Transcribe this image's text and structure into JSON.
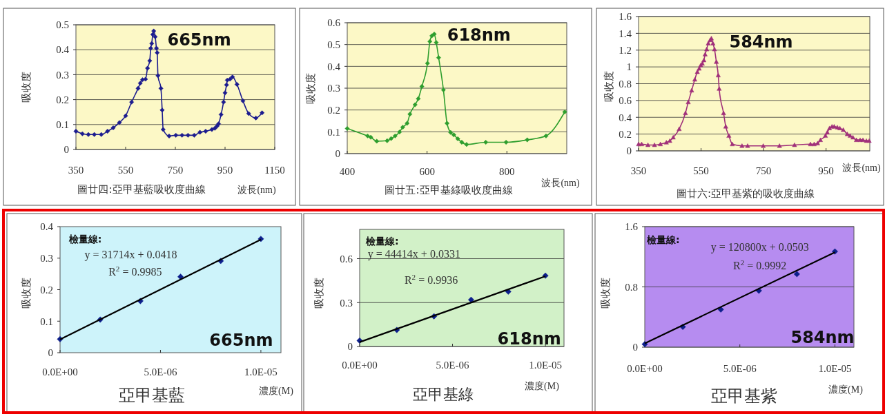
{
  "chart_data": [
    {
      "type": "line",
      "title": "圖廿四:亞甲基藍吸收度曲線",
      "xlabel": "波長(nm)",
      "ylabel": "吸收度",
      "annotations": [
        "665nm"
      ],
      "xlim": [
        350,
        1150
      ],
      "xticks": [
        350,
        550,
        750,
        950,
        1150
      ],
      "ylim": [
        0,
        0.5
      ],
      "yticks": [
        0,
        0.1,
        0.2,
        0.3,
        0.4,
        0.5
      ],
      "grid": "y",
      "marker": "diamond",
      "series": [
        {
          "color": "#1c1c8f",
          "x": [
            350,
            376,
            400,
            424,
            452,
            477,
            500,
            525,
            550,
            574,
            600,
            609,
            618,
            630,
            638,
            647,
            651,
            655,
            659,
            663,
            669,
            674,
            677,
            680,
            692,
            697,
            701,
            725,
            752,
            777,
            801,
            826,
            849,
            872,
            897,
            909,
            918,
            924,
            934,
            944,
            950,
            956,
            959,
            970,
            980,
            998,
            1022,
            1045,
            1074,
            1099
          ],
          "values": [
            0.073,
            0.063,
            0.06,
            0.06,
            0.06,
            0.073,
            0.087,
            0.108,
            0.135,
            0.19,
            0.245,
            0.266,
            0.28,
            0.282,
            0.326,
            0.356,
            0.406,
            0.425,
            0.461,
            0.475,
            0.452,
            0.406,
            0.388,
            0.296,
            0.245,
            0.158,
            0.08,
            0.054,
            0.057,
            0.057,
            0.057,
            0.057,
            0.069,
            0.073,
            0.08,
            0.085,
            0.094,
            0.103,
            0.14,
            0.19,
            0.227,
            0.259,
            0.278,
            0.282,
            0.291,
            0.261,
            0.195,
            0.144,
            0.126,
            0.147
          ]
        }
      ]
    },
    {
      "type": "line",
      "title": "圖廿五:亞甲基綠吸收度曲線",
      "xlabel": "波長(nm)",
      "ylabel": "吸收度",
      "annotations": [
        "618nm"
      ],
      "xlim": [
        400,
        950
      ],
      "xticks": [
        400,
        600,
        800
      ],
      "ylim": [
        0,
        0.6
      ],
      "yticks": [
        0,
        0.1,
        0.2,
        0.3,
        0.4,
        0.5,
        0.6
      ],
      "grid": "y",
      "marker": "diamond",
      "series": [
        {
          "color": "#2e9e2e",
          "x": [
            400,
            451,
            459,
            474,
            500,
            510,
            520,
            531,
            539,
            550,
            557,
            570,
            578,
            587,
            601,
            607,
            612,
            618,
            623,
            629,
            641,
            650,
            659,
            667,
            677,
            687,
            699,
            747,
            798,
            851,
            898,
            945
          ],
          "values": [
            0.115,
            0.081,
            0.075,
            0.057,
            0.059,
            0.069,
            0.081,
            0.099,
            0.121,
            0.139,
            0.181,
            0.224,
            0.252,
            0.308,
            0.414,
            0.514,
            0.54,
            0.548,
            0.509,
            0.44,
            0.292,
            0.139,
            0.097,
            0.086,
            0.068,
            0.052,
            0.042,
            0.052,
            0.052,
            0.063,
            0.081,
            0.191
          ]
        }
      ]
    },
    {
      "type": "line",
      "title": "圖廿六:亞甲基紫的吸收度曲線",
      "xlabel": "波長(nm)",
      "ylabel": "吸收度",
      "annotations": [
        "584nm"
      ],
      "xlim": [
        350,
        1090
      ],
      "xticks": [
        350,
        550,
        750,
        950
      ],
      "ylim": [
        0,
        1.6
      ],
      "yticks": [
        0,
        0.2,
        0.4,
        0.6,
        0.8,
        1,
        1.2,
        1.4,
        1.6
      ],
      "grid": "y",
      "marker": "triangle",
      "series": [
        {
          "color": "#a0307a",
          "x": [
            350,
            360,
            380,
            401,
            420,
            439,
            450,
            461,
            480,
            500,
            509,
            520,
            530,
            538,
            544,
            549,
            554,
            559,
            563,
            568,
            573,
            579,
            583,
            588,
            593,
            599,
            605,
            608,
            622,
            629,
            639,
            650,
            681,
            699,
            749,
            801,
            849,
            900,
            912,
            923,
            932,
            948,
            954,
            961,
            969,
            976,
            986,
            994,
            1005,
            1018,
            1027,
            1036,
            1047,
            1059,
            1068,
            1079,
            1088
          ],
          "values": [
            0.08,
            0.08,
            0.07,
            0.07,
            0.08,
            0.1,
            0.12,
            0.16,
            0.26,
            0.45,
            0.58,
            0.72,
            0.85,
            0.94,
            0.98,
            1.02,
            1.04,
            1.08,
            1.15,
            1.21,
            1.28,
            1.32,
            1.34,
            1.28,
            1.21,
            1.06,
            0.9,
            0.74,
            0.45,
            0.29,
            0.18,
            0.08,
            0.06,
            0.06,
            0.06,
            0.06,
            0.07,
            0.08,
            0.08,
            0.09,
            0.13,
            0.18,
            0.22,
            0.27,
            0.29,
            0.29,
            0.28,
            0.27,
            0.25,
            0.2,
            0.18,
            0.16,
            0.13,
            0.13,
            0.13,
            0.12,
            0.12
          ]
        }
      ]
    },
    {
      "type": "scatter",
      "title": "亞甲基藍",
      "xlabel": "濃度(M)",
      "ylabel": "吸收度",
      "annotations": [
        "檢量線:",
        "y = 31714x + 0.0418",
        "R$^{2}$ = 0.9985",
        "665nm"
      ],
      "xlim": [
        0,
        1.1e-05
      ],
      "xticks": [
        {
          "value": 0,
          "label": "0.0E+00"
        },
        {
          "value": 5e-06,
          "label": "5.0E-06"
        },
        {
          "value": 1e-05,
          "label": "1.0E-05"
        }
      ],
      "ylim": [
        0,
        0.4
      ],
      "yticks": [
        0,
        0.1,
        0.2,
        0.3,
        0.4
      ],
      "grid": false,
      "marker": "diamond",
      "series": [
        {
          "color": "#0d1f8c",
          "x": [
            0,
            2e-06,
            4e-06,
            6e-06,
            8e-06,
            1e-05
          ],
          "values": [
            0.043,
            0.105,
            0.164,
            0.241,
            0.291,
            0.361
          ]
        },
        {
          "type": "line",
          "color": "#000000",
          "marker": "none",
          "x": [
            0,
            1e-05
          ],
          "values": [
            0.042,
            0.359
          ]
        }
      ]
    },
    {
      "type": "scatter",
      "title": "亞甲基綠",
      "xlabel": "濃度(M)",
      "ylabel": "吸收度",
      "annotations": [
        "檢量線:",
        "y = 44414x + 0.0331",
        "R$^{2}$ = 0.9936",
        "618nm"
      ],
      "xlim": [
        0,
        1.1e-05
      ],
      "xticks": [
        {
          "value": 0,
          "label": "0.0E+00"
        },
        {
          "value": 5e-06,
          "label": "5.0E-06"
        },
        {
          "value": 1e-05,
          "label": "1.0E-05"
        }
      ],
      "ylim": [
        0,
        0.8
      ],
      "yticks": [
        0,
        0.3,
        0.6
      ],
      "grid": "y",
      "marker": "diamond",
      "series": [
        {
          "color": "#0d1f8c",
          "x": [
            0,
            2e-06,
            4e-06,
            6e-06,
            8e-06,
            1e-05
          ],
          "values": [
            0.04,
            0.113,
            0.206,
            0.319,
            0.375,
            0.484
          ]
        },
        {
          "type": "line",
          "color": "#000000",
          "marker": "none",
          "x": [
            0,
            1e-05
          ],
          "values": [
            0.03,
            0.48
          ]
        }
      ]
    },
    {
      "type": "scatter",
      "title": "亞甲基紫",
      "xlabel": "濃度(M)",
      "ylabel": "吸收度",
      "annotations": [
        "檢量線:",
        "y = 120800x + 0.0503",
        "R$^{2}$ = 0.9992",
        "584nm"
      ],
      "xlim": [
        0,
        1.1e-05
      ],
      "xticks": [
        {
          "value": 0,
          "label": "0.0E+00"
        },
        {
          "value": 5e-06,
          "label": "5.0E-06"
        },
        {
          "value": 1e-05,
          "label": "1.0E-05"
        }
      ],
      "ylim": [
        0,
        1.6
      ],
      "yticks": [
        0,
        0.8,
        1.6
      ],
      "grid": "y",
      "marker": "diamond",
      "series": [
        {
          "color": "#0d1f8c",
          "x": [
            0,
            2e-06,
            4e-06,
            6e-06,
            8e-06,
            1e-05
          ],
          "values": [
            0.04,
            0.27,
            0.5,
            0.75,
            0.97,
            1.27
          ]
        },
        {
          "type": "line",
          "color": "#000000",
          "marker": "none",
          "x": [
            0,
            1e-05
          ],
          "values": [
            0.05,
            1.26
          ]
        }
      ]
    }
  ]
}
